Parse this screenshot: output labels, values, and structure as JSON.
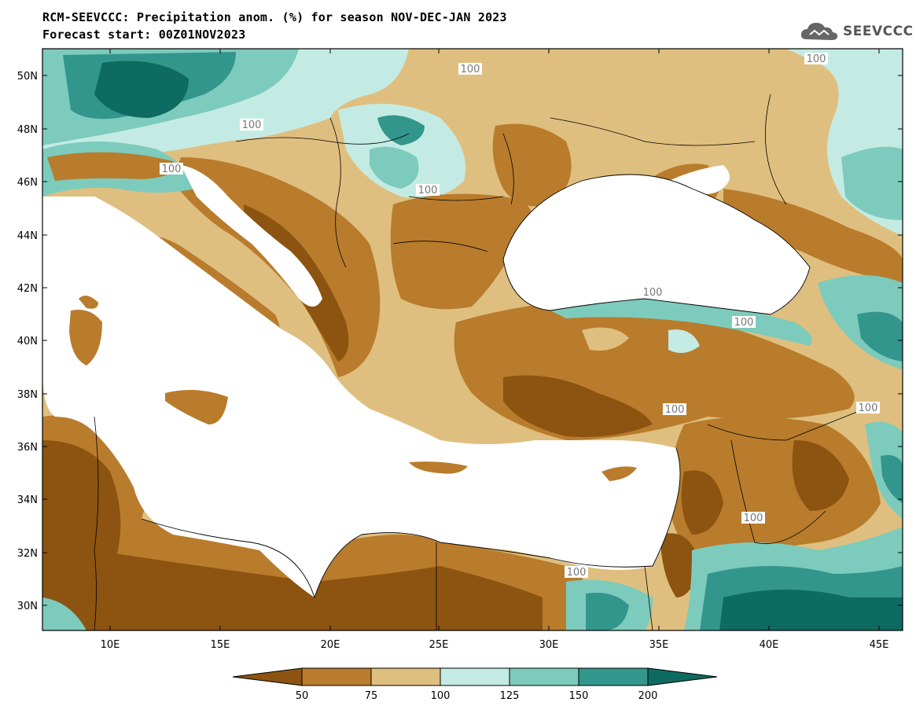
{
  "header": {
    "title_line1": "RCM-SEEVCCC: Precipitation anom. (%) for season NOV-DEC-JAN 2023",
    "title_line2": "Forecast start: 00Z01NOV2023"
  },
  "logo": {
    "text": "SEEVCCC",
    "icon": "cloud-icon"
  },
  "map": {
    "lat_ticks": [
      "50N",
      "48N",
      "46N",
      "44N",
      "42N",
      "40N",
      "38N",
      "36N",
      "34N",
      "32N",
      "30N"
    ],
    "lon_ticks": [
      "10E",
      "15E",
      "20E",
      "25E",
      "30E",
      "35E",
      "40E",
      "45E"
    ],
    "contour_labels": [
      "100",
      "100",
      "100",
      "100",
      "100",
      "100",
      "100",
      "100",
      "100",
      "100",
      "100"
    ]
  },
  "legend": {
    "tick_labels": [
      "50",
      "75",
      "100",
      "125",
      "150",
      "200"
    ],
    "bins": [
      {
        "range": "<50",
        "color": "#8c5410"
      },
      {
        "range": "50-75",
        "color": "#b97c2c"
      },
      {
        "range": "75-100",
        "color": "#dfbf7f"
      },
      {
        "range": "100-125",
        "color": "#c4ebe3"
      },
      {
        "range": "125-150",
        "color": "#7dcbbd"
      },
      {
        "range": "150-200",
        "color": "#33968c"
      },
      {
        "range": ">200",
        "color": "#0e6b62"
      }
    ]
  }
}
